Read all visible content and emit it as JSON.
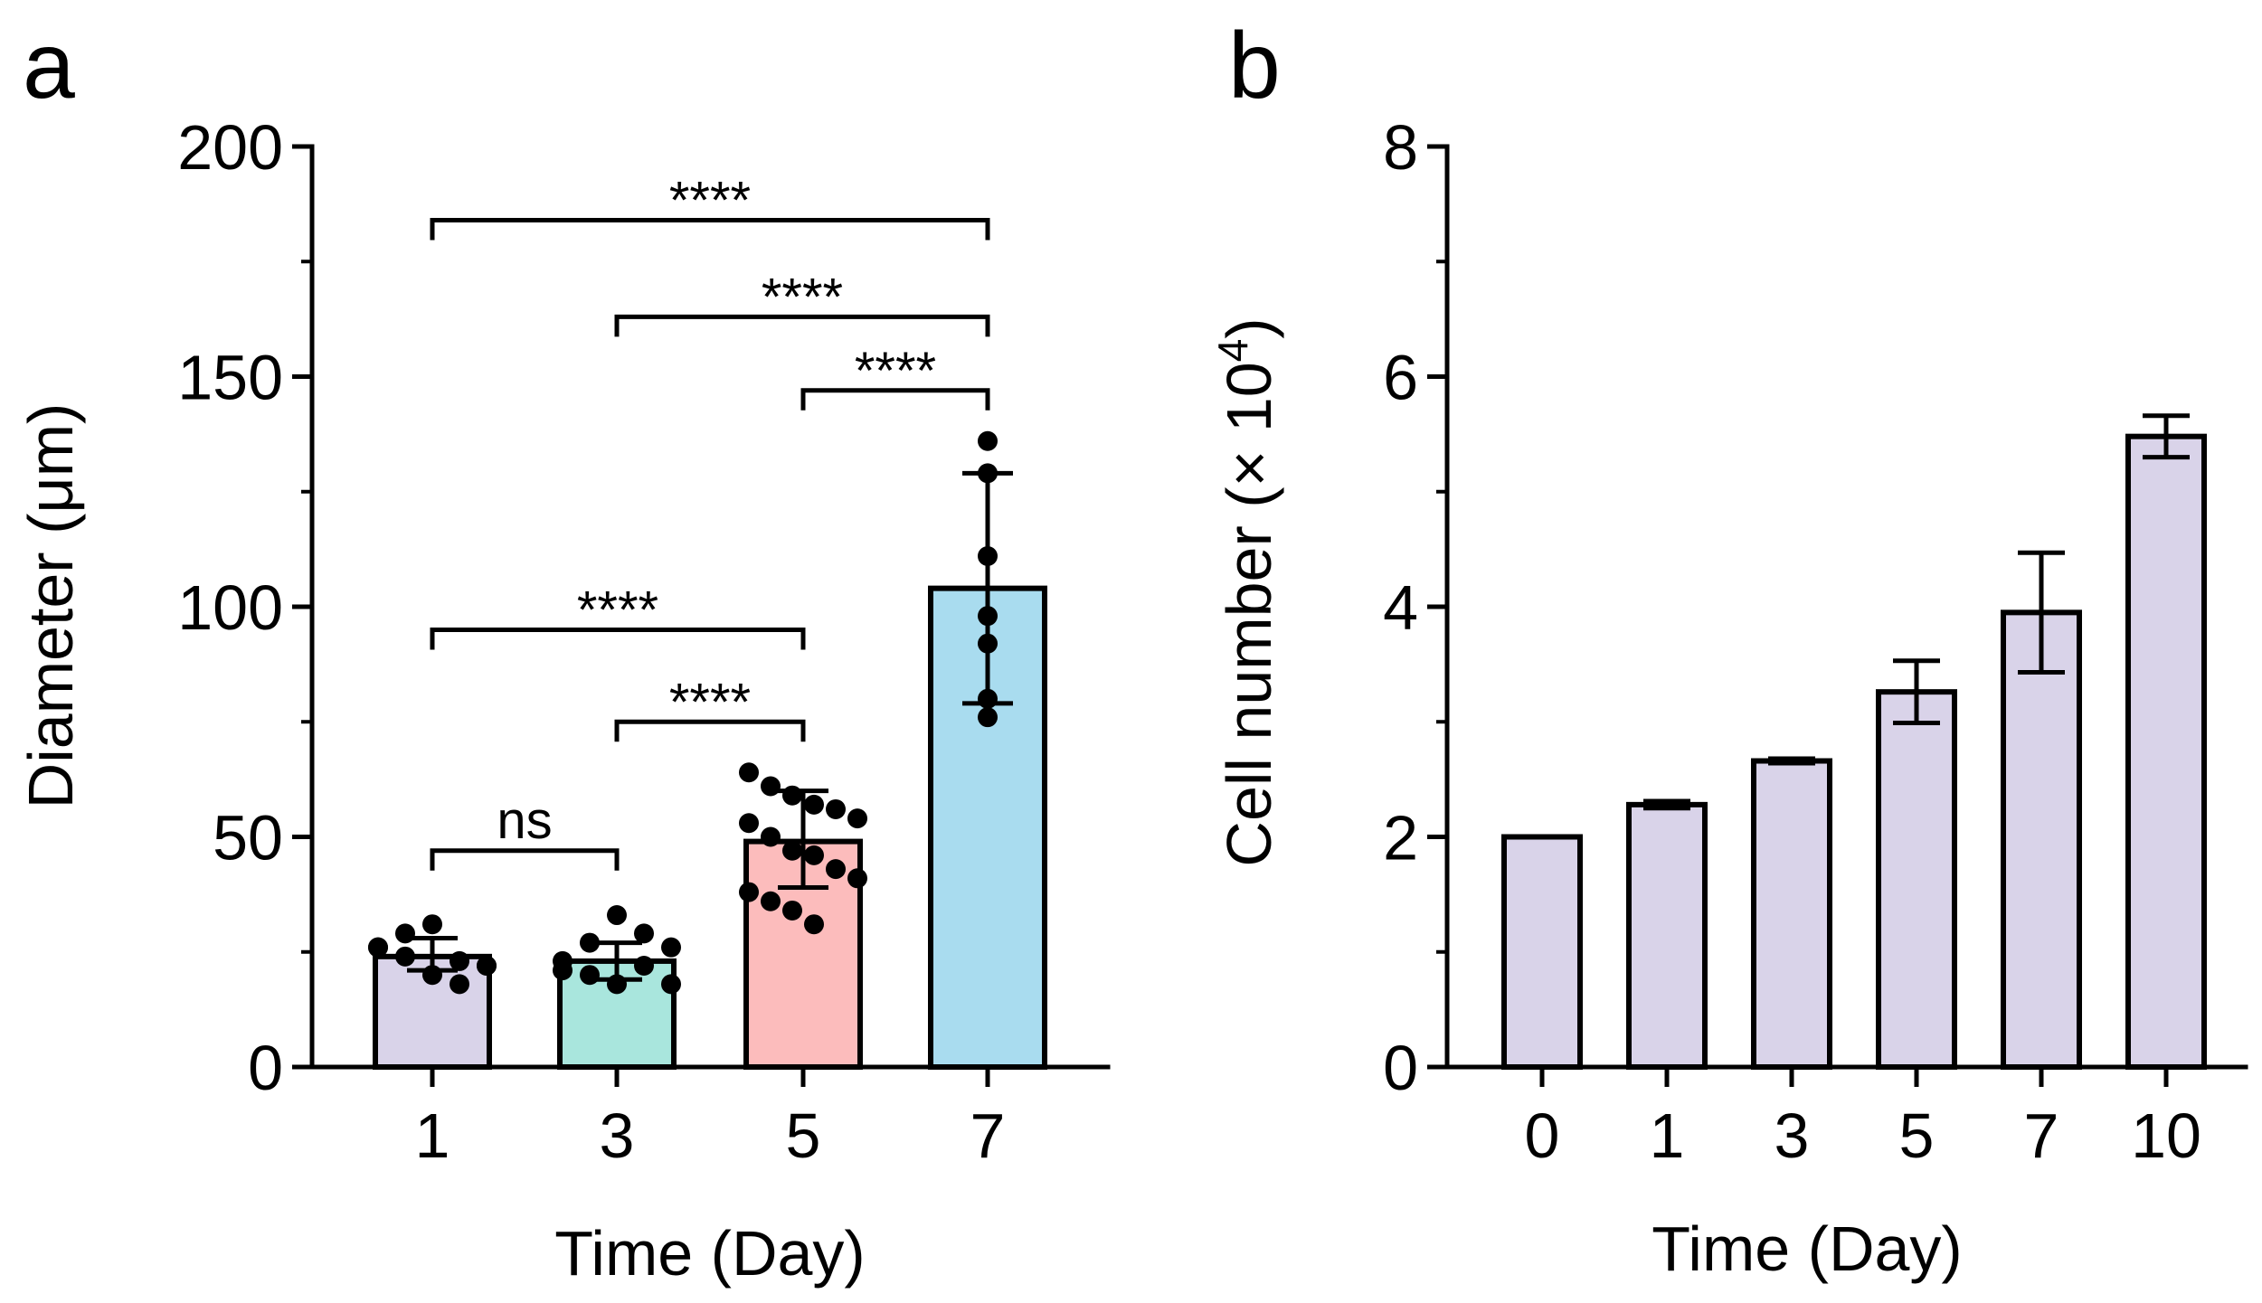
{
  "chart_data": [
    {
      "panel": "a",
      "type": "bar",
      "xlabel": "Time (Day)",
      "ylabel": "Diameter (μm)",
      "ylim": [
        0,
        200
      ],
      "yticks": [
        "0",
        "50",
        "100",
        "150",
        "200"
      ],
      "categories": [
        "1",
        "3",
        "5",
        "7"
      ],
      "values": [
        24,
        23,
        49,
        104
      ],
      "errors_low": [
        21,
        19,
        39,
        79
      ],
      "errors_high": [
        28,
        27,
        60,
        129
      ],
      "colors": [
        "#d9d3e9",
        "#a9e6dd",
        "#fcbcbc",
        "#a9dcef"
      ],
      "points": [
        [
          26,
          29,
          31,
          23,
          22,
          26,
          24,
          20,
          18,
          22
        ],
        [
          23,
          27,
          33,
          29,
          26,
          21,
          20,
          18,
          22,
          18
        ],
        [
          64,
          61,
          59,
          57,
          56,
          54,
          53,
          50,
          47,
          46,
          43,
          41,
          38,
          36,
          34,
          31
        ],
        [
          136,
          129,
          111,
          98,
          92,
          80,
          76
        ]
      ],
      "comparisons": [
        {
          "from": "1",
          "to": "3",
          "label": "ns",
          "y": 47
        },
        {
          "from": "3",
          "to": "5",
          "label": "****",
          "y": 75
        },
        {
          "from": "1",
          "to": "5",
          "label": "****",
          "y": 95
        },
        {
          "from": "5",
          "to": "7",
          "label": "****",
          "y": 147
        },
        {
          "from": "3",
          "to": "7",
          "label": "****",
          "y": 163
        },
        {
          "from": "1",
          "to": "7",
          "label": "****",
          "y": 184
        }
      ]
    },
    {
      "panel": "b",
      "type": "bar",
      "xlabel": "Time (Day)",
      "ylabel": "Cell number (× 10",
      "ylabel_sup": "4",
      "ylabel_end": ")",
      "ylim": [
        0,
        8
      ],
      "yticks": [
        "0",
        "2",
        "4",
        "6",
        "8"
      ],
      "categories": [
        "0",
        "1",
        "3",
        "5",
        "7",
        "10"
      ],
      "values": [
        2.0,
        2.28,
        2.66,
        3.26,
        3.95,
        5.48
      ],
      "errors": [
        0.0,
        0.03,
        0.02,
        0.27,
        0.52,
        0.18
      ],
      "colors": [
        "#d9d3e9"
      ]
    }
  ]
}
